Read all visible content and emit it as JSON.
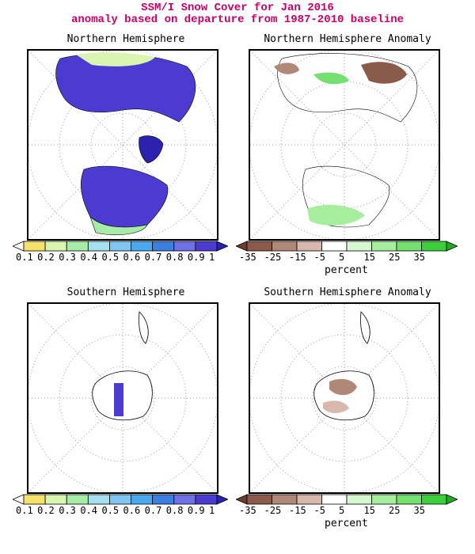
{
  "figure": {
    "title_line1": "SSM/I Snow Cover for Jan 2016",
    "title_line2": "anomaly based on departure from 1987-2010 baseline"
  },
  "panels": [
    {
      "id": "nh",
      "title": "Northern Hemisphere",
      "kind": "cover"
    },
    {
      "id": "nha",
      "title": "Northern Hemisphere Anomaly",
      "kind": "anomaly"
    },
    {
      "id": "sh",
      "title": "Southern Hemisphere",
      "kind": "cover"
    },
    {
      "id": "sha",
      "title": "Southern Hemisphere Anomaly",
      "kind": "anomaly"
    }
  ],
  "legend_cover": {
    "ticks": [
      "0.1",
      "0.2",
      "0.3",
      "0.4",
      "0.5",
      "0.6",
      "0.7",
      "0.8",
      "0.9",
      "1"
    ],
    "colors": [
      "#ffffff",
      "#f6e26a",
      "#d9f5b0",
      "#a8eaa8",
      "#a8dff0",
      "#7fc6f0",
      "#4aa8ee",
      "#3b7fe0",
      "#6f6fe6",
      "#4b3bd0",
      "#2b22b0"
    ]
  },
  "legend_anomaly": {
    "ticks": [
      "-35",
      "-25",
      "-15",
      "-5",
      "5",
      "15",
      "25",
      "35"
    ],
    "unit": "percent",
    "colors": [
      "#6b3b2e",
      "#8a5a4a",
      "#b08878",
      "#d8b8ac",
      "#ffffff",
      "#d6f7d0",
      "#a6ee9e",
      "#74e070",
      "#3ccf3c",
      "#22aa22"
    ]
  },
  "colors": {
    "title": "#cc0066",
    "land_outline": "#000000",
    "grid": "#888888"
  }
}
